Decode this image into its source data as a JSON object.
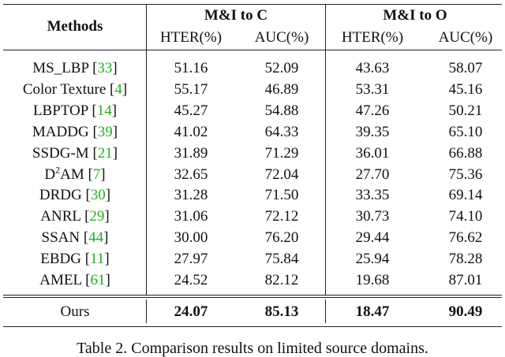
{
  "table": {
    "header": {
      "methods": "Methods",
      "groups": [
        "M&I to C",
        "M&I to O"
      ],
      "metrics": [
        "HTER(%)",
        "AUC(%)",
        "HTER(%)",
        "AUC(%)"
      ]
    },
    "rows": [
      {
        "method": "MS_LBP",
        "ref": "33",
        "cells": [
          "51.16",
          "52.09",
          "43.63",
          "58.07"
        ]
      },
      {
        "method": "Color Texture",
        "ref": "4",
        "cells": [
          "55.17",
          "46.89",
          "53.31",
          "45.16"
        ]
      },
      {
        "method": "LBPTOP",
        "ref": "14",
        "cells": [
          "45.27",
          "54.88",
          "47.26",
          "50.21"
        ]
      },
      {
        "method": "MADDG",
        "ref": "39",
        "cells": [
          "41.02",
          "64.33",
          "39.35",
          "65.10"
        ]
      },
      {
        "method": "SSDG-M",
        "ref": "21",
        "cells": [
          "31.89",
          "71.29",
          "36.01",
          "66.88"
        ]
      },
      {
        "method": "D",
        "sup": "2",
        "method_tail": "AM",
        "ref": "7",
        "cells": [
          "32.65",
          "72.04",
          "27.70",
          "75.36"
        ]
      },
      {
        "method": "DRDG",
        "ref": "30",
        "cells": [
          "31.28",
          "71.50",
          "33.35",
          "69.14"
        ]
      },
      {
        "method": "ANRL",
        "ref": "29",
        "cells": [
          "31.06",
          "72.12",
          "30.73",
          "74.10"
        ]
      },
      {
        "method": "SSAN",
        "ref": "44",
        "cells": [
          "30.00",
          "76.20",
          "29.44",
          "76.62"
        ]
      },
      {
        "method": "EBDG",
        "ref": "11",
        "cells": [
          "27.97",
          "75.84",
          "25.94",
          "78.28"
        ]
      },
      {
        "method": "AMEL",
        "ref": "61",
        "cells": [
          "24.52",
          "82.12",
          "19.68",
          "87.01"
        ]
      }
    ],
    "ours": {
      "method": "Ours",
      "cells": [
        "24.07",
        "85.13",
        "18.47",
        "90.49"
      ]
    }
  },
  "caption": "Table 2. Comparison results on limited source domains."
}
